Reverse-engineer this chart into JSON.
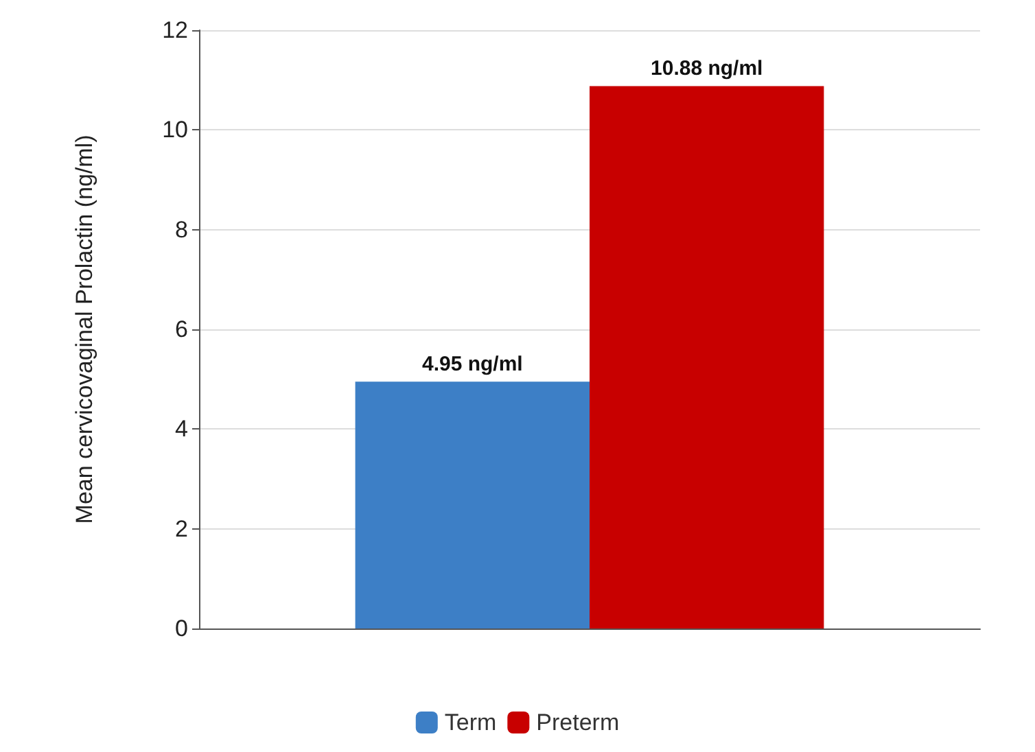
{
  "chart_data": {
    "type": "bar",
    "ylabel": "Mean cervicovaginal Prolactin (ng/ml)",
    "categories": [
      null
    ],
    "series": [
      {
        "name": "Term",
        "color": "#3d7fc6",
        "values": [
          4.95
        ],
        "value_labels": [
          "4.95 ng/ml"
        ]
      },
      {
        "name": "Preterm",
        "color": "#c80000",
        "values": [
          10.88
        ],
        "value_labels": [
          "10.88 ng/ml"
        ]
      }
    ],
    "ylim": [
      0,
      12
    ],
    "yticks": [
      0,
      2,
      4,
      6,
      8,
      10,
      12
    ],
    "grid": "y",
    "legend": "bottom"
  }
}
